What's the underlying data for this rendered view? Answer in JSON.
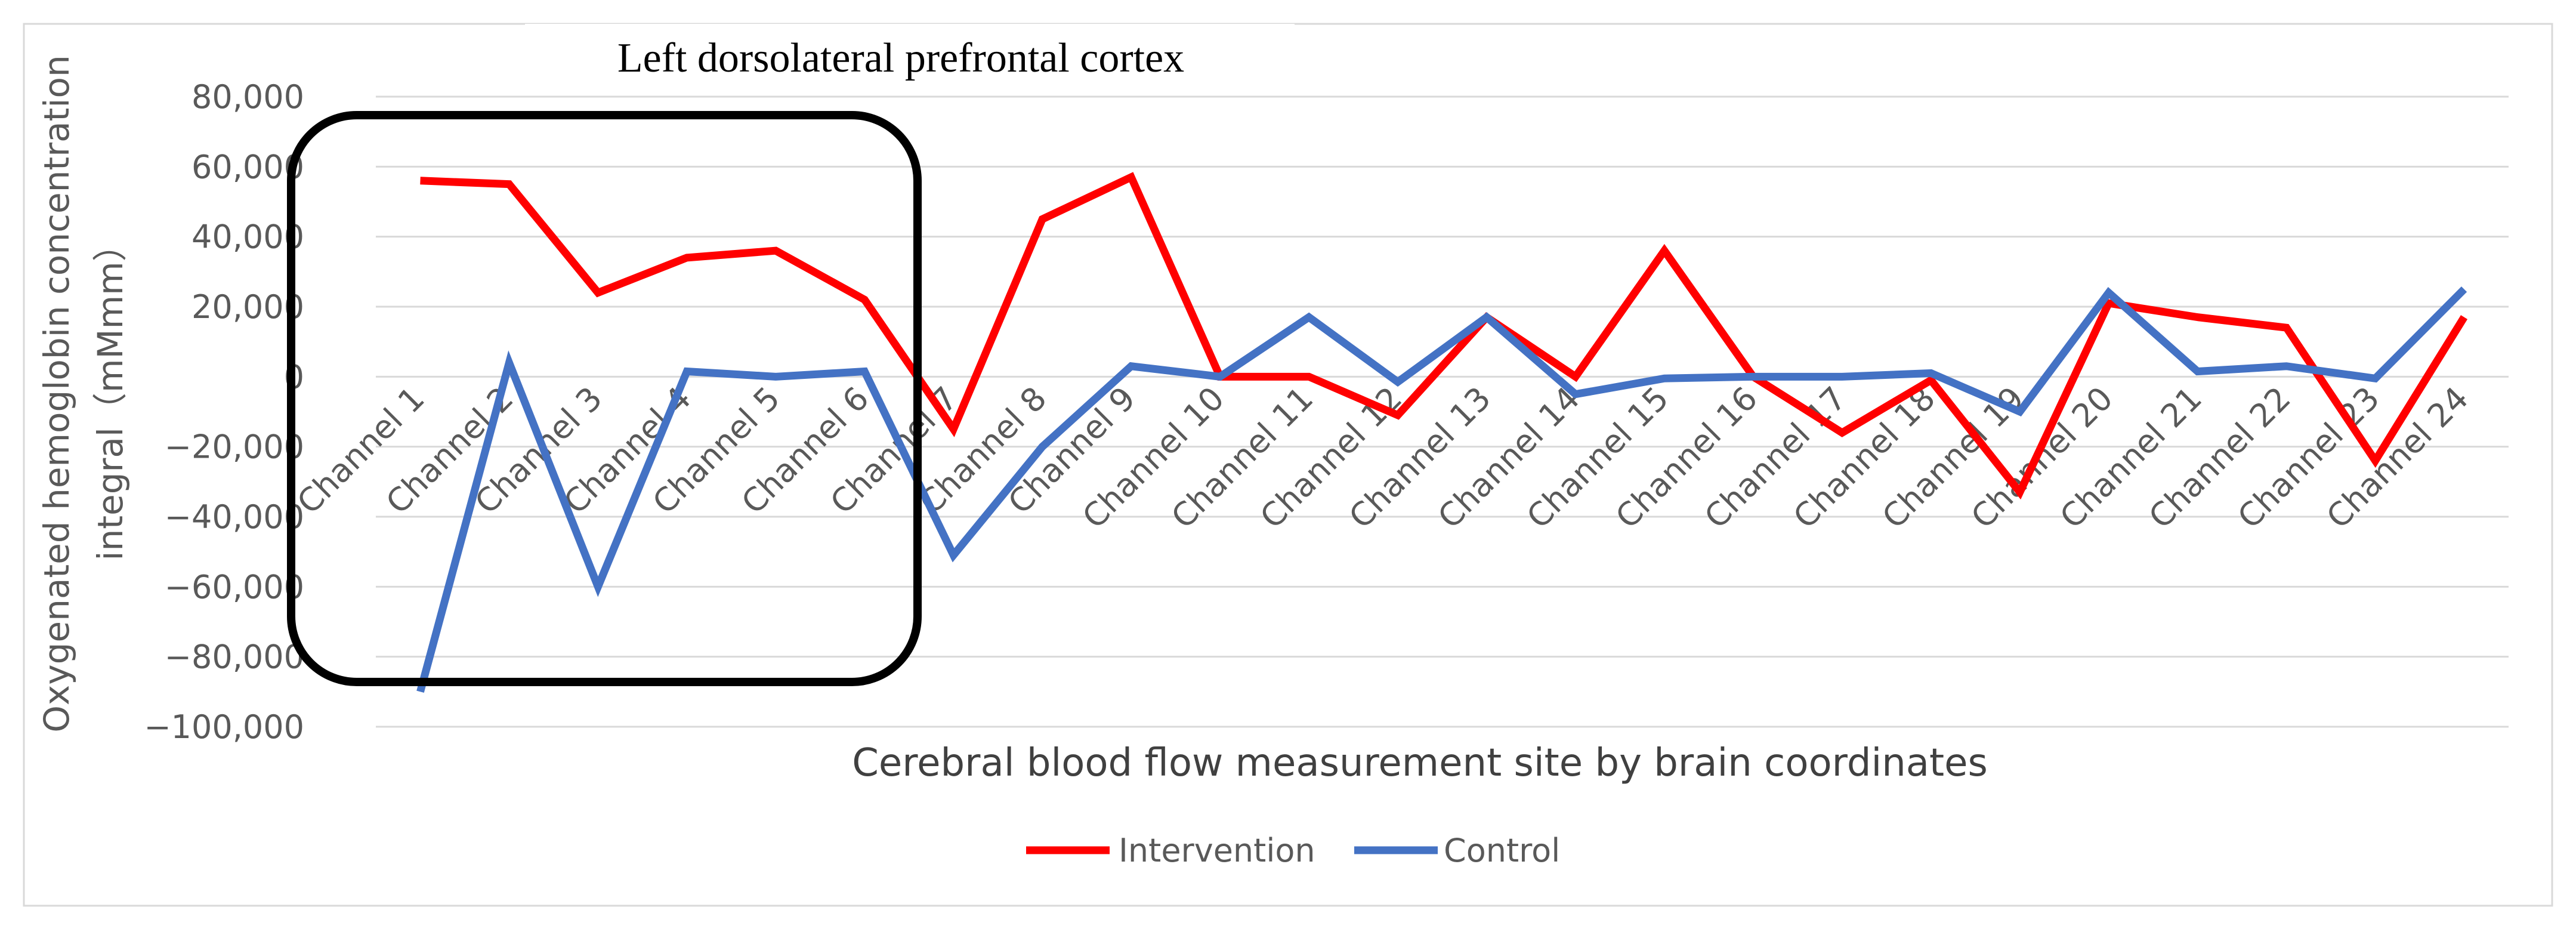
{
  "chart_data": {
    "type": "line",
    "title": "",
    "annotation": "Left dorsolateral prefrontal cortex",
    "xlabel": "Cerebral blood flow measurement site by brain coordinates",
    "ylabel_lines": [
      "Oxygenated hemoglobin concentration",
      "integral（mMmm）"
    ],
    "ylim": [
      -100000,
      80000
    ],
    "yticks": [
      80000,
      60000,
      40000,
      20000,
      0,
      -20000,
      -40000,
      -60000,
      -80000,
      -100000
    ],
    "ytick_labels": [
      "80,000",
      "60,000",
      "40,000",
      "20,000",
      "0",
      "−20,000",
      "−40,000",
      "−60,000",
      "−80,000",
      "−100,000"
    ],
    "grid": true,
    "legend_position": "bottom",
    "categories": [
      "Channel 1",
      "Channel 2",
      "Channel 3",
      "Channel 4",
      "Channel 5",
      "Channel 6",
      "Channel 7",
      "Channel 8",
      "Channel 9",
      "Channel 10",
      "Channel 11",
      "Channel 12",
      "Channel 13",
      "Channel 14",
      "Channel 15",
      "Channel 16",
      "Channel 17",
      "Channel 18",
      "Channel 19",
      "Channel 20",
      "Channel 21",
      "Channel 22",
      "Channel 23",
      "Channel 24"
    ],
    "series": [
      {
        "name": "Intervention",
        "color": "#ff0000",
        "values": [
          56000,
          55000,
          24000,
          34000,
          36000,
          22000,
          -15000,
          45000,
          57000,
          0,
          0,
          -11000,
          17000,
          0,
          36000,
          0,
          -16000,
          -1000,
          -33000,
          21000,
          17000,
          14000,
          -24000,
          17000
        ]
      },
      {
        "name": "Control",
        "color": "#4472c4",
        "values": [
          -90000,
          4000,
          -60000,
          1500,
          0,
          1500,
          -51000,
          -20000,
          3000,
          0,
          17000,
          -1500,
          17000,
          -5000,
          -500,
          0,
          0,
          1000,
          -10000,
          24000,
          1500,
          3000,
          -500,
          25000
        ]
      }
    ]
  }
}
